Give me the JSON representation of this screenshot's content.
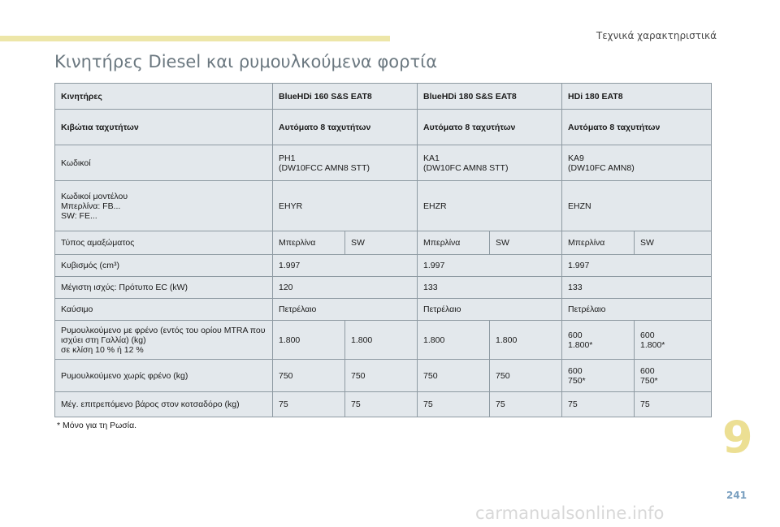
{
  "header": {
    "chapter_title": "Τεχνικά χαρακτηριστικά"
  },
  "page_title": "Κινητήρες Diesel και ρυμουλκούμενα φορτία",
  "table": {
    "rows": [
      {
        "label": "Κινητήρες",
        "cells": [
          "BlueHDi 160 S&S EAT8",
          "BlueHDi 180 S&S EAT8",
          "HDi 180 EAT8"
        ]
      },
      {
        "label": "Κιβώτια ταχυτήτων",
        "cells": [
          "Αυτόματο 8 ταχυτήτων",
          "Αυτόματο 8 ταχυτήτων",
          "Αυτόματο 8 ταχυτήτων"
        ]
      },
      {
        "label": "Κωδικοί",
        "cells": [
          [
            "PH1",
            "(DW10FCC AMN8 STT)"
          ],
          [
            "KA1",
            "(DW10FC AMN8 STT)"
          ],
          [
            "KA9",
            "(DW10FC AMN8)"
          ]
        ]
      },
      {
        "label": [
          "Κωδικοί μοντέλου",
          "Μπερλίνα: FB...",
          "SW: FE..."
        ],
        "cells": [
          "EHYR",
          "EHZR",
          "EHZN"
        ]
      },
      {
        "label": "Τύπος αμαξώματος",
        "cells": [
          "Μπερλίνα",
          "SW",
          "Μπερλίνα",
          "SW",
          "Μπερλίνα",
          "SW"
        ]
      },
      {
        "label": "Κυβισμός (cm³)",
        "cells": [
          "1.997",
          "1.997",
          "1.997"
        ]
      },
      {
        "label": "Μέγιστη ισχύς: Πρότυπο EC (kW)",
        "cells": [
          "120",
          "133",
          "133"
        ]
      },
      {
        "label": "Καύσιμο",
        "cells": [
          "Πετρέλαιο",
          "Πετρέλαιο",
          "Πετρέλαιο"
        ]
      },
      {
        "label": [
          "Ρυμουλκούμενο με φρένο (εντός του ορίου MTRA που",
          "ισχύει στη Γαλλία) (kg)",
          "σε κλίση 10 % ή 12 %"
        ],
        "cells": [
          "1.800",
          "1.800",
          "1.800",
          "1.800",
          [
            "600",
            "1.800*"
          ],
          [
            "600",
            "1.800*"
          ]
        ]
      },
      {
        "label": "Ρυμουλκούμενο χωρίς φρένο (kg)",
        "cells": [
          "750",
          "750",
          "750",
          "750",
          [
            "600",
            "750*"
          ],
          [
            "600",
            "750*"
          ]
        ]
      },
      {
        "label": "Μέγ. επιτρεπόμενο βάρος στον κοτσαδόρο (kg)",
        "cells": [
          "75",
          "75",
          "75",
          "75",
          "75",
          "75"
        ]
      }
    ]
  },
  "footnote": "*   Μόνο για τη Ρωσία.",
  "chapter_number": "9",
  "page_number": "241",
  "watermark": "carmanualsonline.info"
}
